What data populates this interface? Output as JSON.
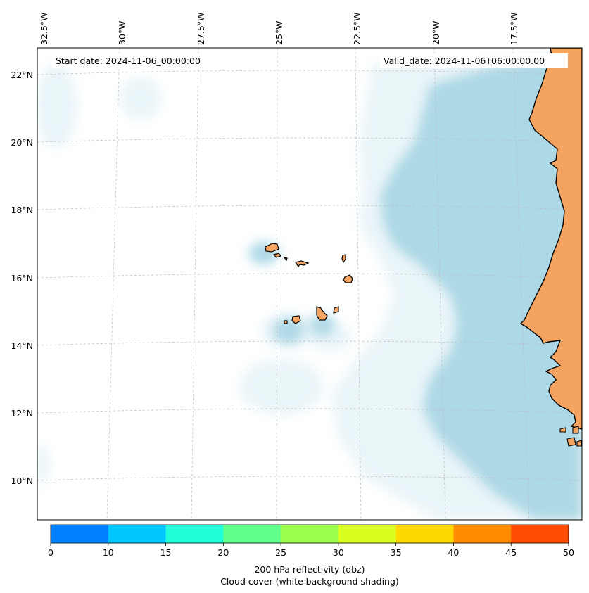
{
  "map": {
    "start_date": "Start date: 2024-11-06_00:00:00",
    "valid_date": "Valid_date: 2024-11-06T06:00:00.00",
    "lon_labels": [
      "32.5°W",
      "30°W",
      "27.5°W",
      "25°W",
      "22.5°W",
      "20°W",
      "17.5°W"
    ],
    "lat_labels": [
      "22°N",
      "20°N",
      "18°N",
      "16°N",
      "14°N",
      "12°N",
      "10°N"
    ],
    "land_color": "#f4a460",
    "cloud_color": "#add8e6",
    "gridlines": "on"
  },
  "colorbar": {
    "ticks": [
      "0",
      "10",
      "15",
      "20",
      "25",
      "30",
      "35",
      "40",
      "45",
      "50"
    ],
    "colors": [
      "#0080ff",
      "#00c8ff",
      "#20ffd8",
      "#60ff8c",
      "#9cff50",
      "#d8ff20",
      "#ffd800",
      "#ff8c00",
      "#ff4c00"
    ],
    "label_line1": "200 hPa reflectivity (dbz)",
    "label_line2": "Cloud cover (white background shading)"
  }
}
